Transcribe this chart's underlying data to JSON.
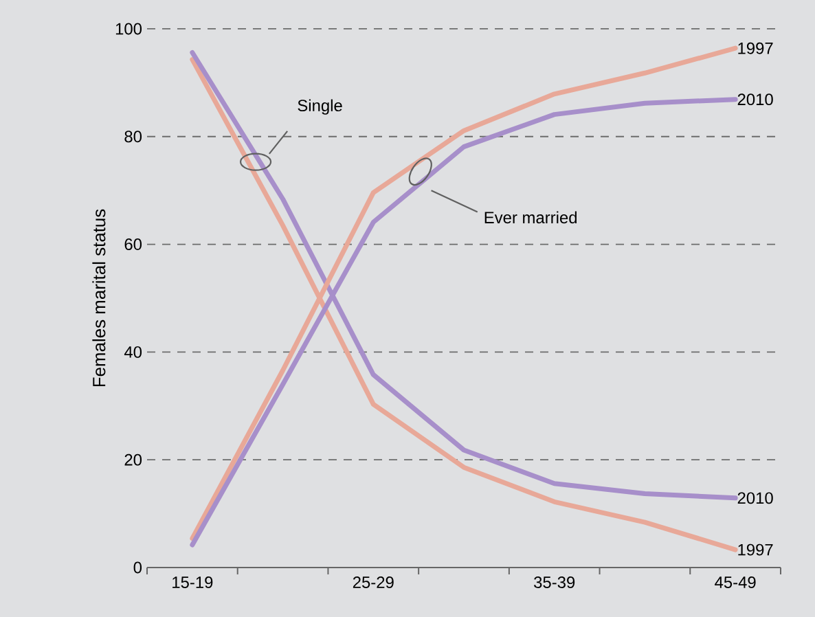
{
  "chart_data": {
    "type": "line",
    "ylabel": "Females marital status",
    "categories": [
      "15-19",
      null,
      "25-29",
      null,
      "35-39",
      null,
      "45-49"
    ],
    "ylim": [
      0,
      100
    ],
    "yticks": [
      0,
      20,
      40,
      60,
      80,
      100
    ],
    "grid": "y",
    "marker": "none",
    "line_style": "solid",
    "annotations": [
      "Single",
      "Ever married"
    ],
    "series": [
      {
        "name": "1997",
        "color": "#e8a898",
        "values": [
          94.3,
          63.5,
          30.3,
          18.6,
          12.2,
          8.4,
          3.3
        ]
      },
      {
        "name": "2010",
        "color": "#a78fca",
        "values": [
          95.6,
          68.4,
          35.8,
          21.8,
          15.6,
          13.7,
          12.9
        ]
      },
      {
        "name": "1997",
        "color": "#e8a898",
        "values": [
          5.4,
          36.6,
          69.6,
          81.1,
          87.9,
          91.8,
          96.4
        ]
      },
      {
        "name": "2010",
        "color": "#a78fca",
        "values": [
          4.2,
          34.0,
          64.1,
          78.1,
          84.1,
          86.2,
          86.9
        ]
      }
    ]
  }
}
